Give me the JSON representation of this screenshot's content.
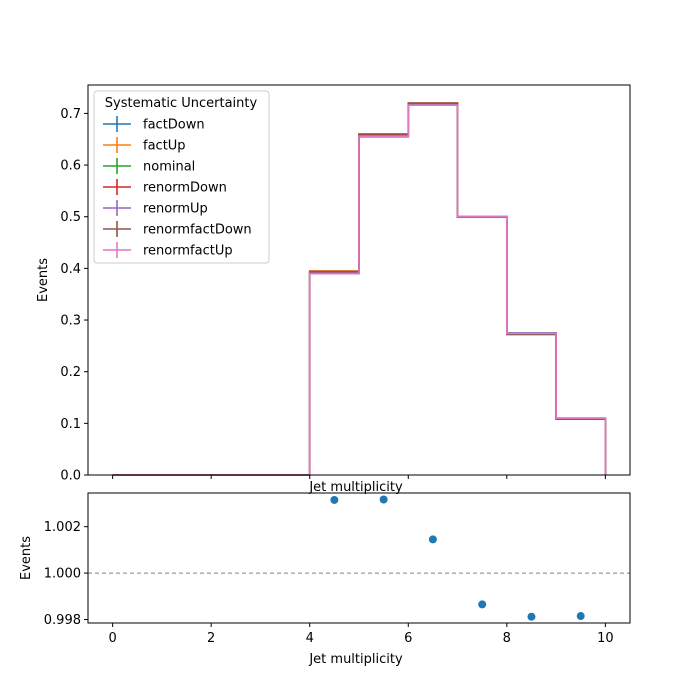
{
  "chart_data": [
    {
      "type": "line",
      "style": "step-histogram",
      "xlabel": "Jet multiplicity",
      "ylabel": "Events",
      "xlim": [
        -0.5,
        10.5
      ],
      "ylim": [
        0,
        0.755
      ],
      "xticks": [
        0,
        2,
        4,
        6,
        8,
        10
      ],
      "yticks": [
        0.0,
        0.1,
        0.2,
        0.3,
        0.4,
        0.5,
        0.6,
        0.7
      ],
      "ytick_labels": [
        "0.0",
        "0.1",
        "0.2",
        "0.3",
        "0.4",
        "0.5",
        "0.6",
        "0.7"
      ],
      "bin_edges": [
        0,
        1,
        2,
        3,
        4,
        5,
        6,
        7,
        8,
        9,
        10
      ],
      "legend": {
        "title": "Systematic Uncertainty",
        "position": "upper-left"
      },
      "series": [
        {
          "name": "factDown",
          "color": "#1f77b4",
          "values": [
            0,
            0,
            0,
            0,
            0.39,
            0.655,
            0.716,
            0.5,
            0.275,
            0.11
          ]
        },
        {
          "name": "factUp",
          "color": "#ff7f0e",
          "values": [
            0,
            0,
            0,
            0,
            0.395,
            0.66,
            0.72,
            0.5,
            0.272,
            0.108
          ]
        },
        {
          "name": "nominal",
          "color": "#2ca02c",
          "values": [
            0,
            0,
            0,
            0,
            0.392,
            0.658,
            0.718,
            0.5,
            0.273,
            0.109
          ]
        },
        {
          "name": "renormDown",
          "color": "#d62728",
          "values": [
            0,
            0,
            0,
            0,
            0.393,
            0.659,
            0.719,
            0.499,
            0.273,
            0.109
          ]
        },
        {
          "name": "renormUp",
          "color": "#9467bd",
          "values": [
            0,
            0,
            0,
            0,
            0.391,
            0.656,
            0.717,
            0.5,
            0.274,
            0.11
          ]
        },
        {
          "name": "renormfactDown",
          "color": "#8c564b",
          "values": [
            0,
            0,
            0,
            0,
            0.394,
            0.66,
            0.72,
            0.499,
            0.272,
            0.108
          ]
        },
        {
          "name": "renormfactUp",
          "color": "#e377c2",
          "values": [
            0,
            0,
            0,
            0,
            0.39,
            0.656,
            0.716,
            0.5,
            0.274,
            0.11
          ]
        }
      ]
    },
    {
      "type": "scatter",
      "xlabel": "Jet multiplicity",
      "ylabel": "Events",
      "xlim": [
        -0.5,
        10.5
      ],
      "ylim": [
        0.99785,
        1.00345
      ],
      "xticks": [
        0,
        2,
        4,
        6,
        8,
        10
      ],
      "yticks": [
        0.998,
        1.0,
        1.002
      ],
      "ytick_labels": [
        "0.998",
        "1.000",
        "1.002"
      ],
      "reference_line": 1.0,
      "point_color": "#1f77b4",
      "points": [
        {
          "x": 4.5,
          "y": 1.00315
        },
        {
          "x": 5.5,
          "y": 1.00317
        },
        {
          "x": 6.5,
          "y": 1.00145
        },
        {
          "x": 7.5,
          "y": 0.99865
        },
        {
          "x": 8.5,
          "y": 0.99812
        },
        {
          "x": 9.5,
          "y": 0.99815
        }
      ]
    }
  ]
}
